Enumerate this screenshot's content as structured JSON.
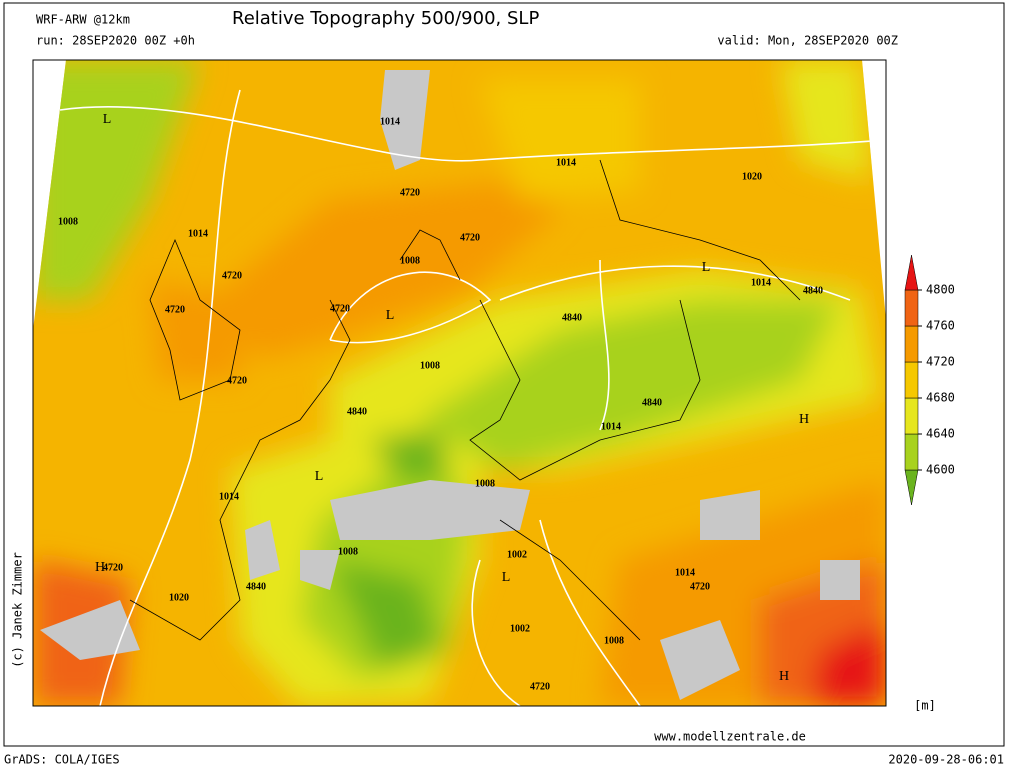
{
  "header": {
    "model": "WRF-ARW @12km",
    "title": "Relative Topography 500/900, SLP",
    "run": "run: 28SEP2020 00Z +0h",
    "valid": "valid: Mon, 28SEP2020 00Z"
  },
  "map": {
    "labels": [
      "L",
      "1014",
      "1014",
      "1020",
      "1008",
      "1014",
      "4720",
      "4720",
      "1008",
      "4720",
      "L",
      "1014",
      "4840",
      "4720",
      "4720",
      "L",
      "4840",
      "1008",
      "4720",
      "4840",
      "4840",
      "1014",
      "H",
      "L",
      "1008",
      "1014",
      "1008",
      "1002",
      "H",
      "4720",
      "1014",
      "4720",
      "4840",
      "L",
      "1020",
      "1002",
      "1008",
      "H",
      "4720"
    ],
    "colorbar": {
      "ticks": [
        4600,
        4640,
        4680,
        4720,
        4760,
        4800
      ],
      "colors": [
        "#6ab41e",
        "#a8d21e",
        "#e6e61e",
        "#f5c800",
        "#f59a00",
        "#f06414",
        "#e61414"
      ],
      "unit": "[m]"
    }
  },
  "footer": {
    "copyright": "(c) Janek Zimmer",
    "website": "www.modellzentrale.de",
    "software": "GrADS: COLA/IGES",
    "timestamp": "2020-09-28-06:01"
  }
}
